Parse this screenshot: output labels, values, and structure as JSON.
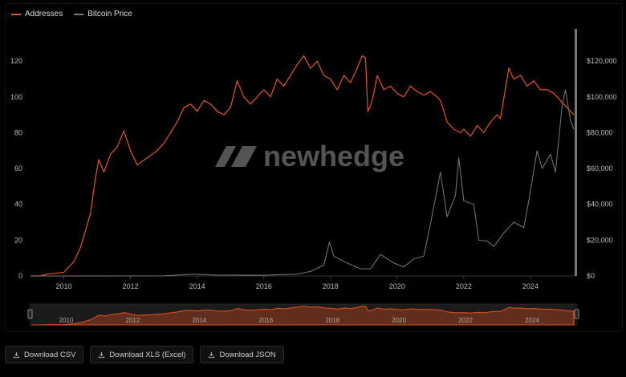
{
  "legend": {
    "items": [
      {
        "label": "Addresses",
        "color": "#e5531f"
      },
      {
        "label": "Bitcoin Price",
        "color": "#7a7a7a"
      }
    ]
  },
  "watermark": {
    "text": "newhedge",
    "icon": "newhedge-logo-icon"
  },
  "downloads": [
    {
      "label": "Download CSV",
      "icon": "download-icon"
    },
    {
      "label": "Download XLS (Excel)",
      "icon": "download-icon"
    },
    {
      "label": "Download JSON",
      "icon": "download-icon"
    }
  ],
  "chart_data": {
    "type": "line",
    "xlim": [
      2009.0,
      2025.35
    ],
    "x_ticks": [
      2010,
      2012,
      2014,
      2016,
      2018,
      2020,
      2022,
      2024
    ],
    "y_left": {
      "lim": [
        0,
        138
      ],
      "ticks": [
        0,
        20,
        40,
        60,
        80,
        100,
        120
      ]
    },
    "y_right": {
      "lim": [
        0,
        138000
      ],
      "ticks": [
        0,
        20000,
        40000,
        60000,
        80000,
        100000,
        120000
      ],
      "tick_labels": [
        "$0",
        "$20,000",
        "$40,000",
        "$60,000",
        "$80,000",
        "$100,000",
        "$120,000"
      ]
    },
    "series": [
      {
        "name": "Addresses",
        "axis": "left",
        "color": "#e5531f",
        "points": [
          [
            2009.0,
            0
          ],
          [
            2009.3,
            0
          ],
          [
            2009.5,
            1
          ],
          [
            2010.0,
            2
          ],
          [
            2010.3,
            8
          ],
          [
            2010.5,
            16
          ],
          [
            2010.8,
            35
          ],
          [
            2010.95,
            55
          ],
          [
            2011.05,
            65
          ],
          [
            2011.2,
            58
          ],
          [
            2011.4,
            68
          ],
          [
            2011.6,
            72
          ],
          [
            2011.8,
            81
          ],
          [
            2012.0,
            70
          ],
          [
            2012.2,
            62
          ],
          [
            2012.5,
            66
          ],
          [
            2012.8,
            70
          ],
          [
            2013.0,
            74
          ],
          [
            2013.2,
            80
          ],
          [
            2013.4,
            86
          ],
          [
            2013.6,
            94
          ],
          [
            2013.8,
            96
          ],
          [
            2014.0,
            92
          ],
          [
            2014.2,
            98
          ],
          [
            2014.4,
            96
          ],
          [
            2014.6,
            92
          ],
          [
            2014.8,
            90
          ],
          [
            2015.0,
            94
          ],
          [
            2015.2,
            109
          ],
          [
            2015.4,
            100
          ],
          [
            2015.6,
            96
          ],
          [
            2015.8,
            100
          ],
          [
            2016.0,
            104
          ],
          [
            2016.2,
            100
          ],
          [
            2016.4,
            110
          ],
          [
            2016.6,
            106
          ],
          [
            2016.8,
            112
          ],
          [
            2017.0,
            118
          ],
          [
            2017.2,
            123
          ],
          [
            2017.4,
            116
          ],
          [
            2017.6,
            120
          ],
          [
            2017.8,
            112
          ],
          [
            2018.0,
            110
          ],
          [
            2018.2,
            104
          ],
          [
            2018.4,
            112
          ],
          [
            2018.6,
            108
          ],
          [
            2018.8,
            116
          ],
          [
            2018.95,
            123
          ],
          [
            2019.05,
            122
          ],
          [
            2019.12,
            92
          ],
          [
            2019.2,
            95
          ],
          [
            2019.3,
            102
          ],
          [
            2019.4,
            112
          ],
          [
            2019.5,
            108
          ],
          [
            2019.6,
            104
          ],
          [
            2019.8,
            106
          ],
          [
            2020.0,
            102
          ],
          [
            2020.2,
            100
          ],
          [
            2020.4,
            106
          ],
          [
            2020.6,
            103
          ],
          [
            2020.8,
            101
          ],
          [
            2021.0,
            103
          ],
          [
            2021.2,
            100
          ],
          [
            2021.3,
            98
          ],
          [
            2021.5,
            86
          ],
          [
            2021.7,
            82
          ],
          [
            2021.9,
            80
          ],
          [
            2022.0,
            82
          ],
          [
            2022.2,
            78
          ],
          [
            2022.4,
            84
          ],
          [
            2022.6,
            80
          ],
          [
            2022.8,
            86
          ],
          [
            2023.0,
            90
          ],
          [
            2023.1,
            88
          ],
          [
            2023.2,
            99
          ],
          [
            2023.35,
            116
          ],
          [
            2023.5,
            110
          ],
          [
            2023.7,
            112
          ],
          [
            2023.9,
            106
          ],
          [
            2024.1,
            109
          ],
          [
            2024.3,
            104
          ],
          [
            2024.5,
            104
          ],
          [
            2024.7,
            102
          ],
          [
            2024.9,
            98
          ],
          [
            2025.1,
            94
          ],
          [
            2025.3,
            90
          ]
        ]
      },
      {
        "name": "Bitcoin Price",
        "axis": "right",
        "color": "#7a7a7a",
        "points": [
          [
            2009.0,
            0
          ],
          [
            2013.0,
            50
          ],
          [
            2013.9,
            1000
          ],
          [
            2014.5,
            500
          ],
          [
            2016.0,
            400
          ],
          [
            2017.0,
            1000
          ],
          [
            2017.4,
            2500
          ],
          [
            2017.8,
            6000
          ],
          [
            2017.97,
            19000
          ],
          [
            2018.1,
            11000
          ],
          [
            2018.4,
            8000
          ],
          [
            2018.9,
            4000
          ],
          [
            2019.2,
            4000
          ],
          [
            2019.5,
            12000
          ],
          [
            2019.9,
            7200
          ],
          [
            2020.2,
            5000
          ],
          [
            2020.5,
            9500
          ],
          [
            2020.8,
            11000
          ],
          [
            2021.0,
            29000
          ],
          [
            2021.3,
            58000
          ],
          [
            2021.5,
            33000
          ],
          [
            2021.75,
            45000
          ],
          [
            2021.85,
            66000
          ],
          [
            2022.0,
            42000
          ],
          [
            2022.3,
            40000
          ],
          [
            2022.45,
            20000
          ],
          [
            2022.7,
            19500
          ],
          [
            2022.9,
            16500
          ],
          [
            2023.2,
            24000
          ],
          [
            2023.5,
            30000
          ],
          [
            2023.8,
            27000
          ],
          [
            2023.95,
            42000
          ],
          [
            2024.2,
            70000
          ],
          [
            2024.35,
            60000
          ],
          [
            2024.6,
            68000
          ],
          [
            2024.75,
            58000
          ],
          [
            2024.95,
            95000
          ],
          [
            2025.05,
            104000
          ],
          [
            2025.2,
            87000
          ],
          [
            2025.3,
            82000
          ]
        ]
      }
    ]
  }
}
